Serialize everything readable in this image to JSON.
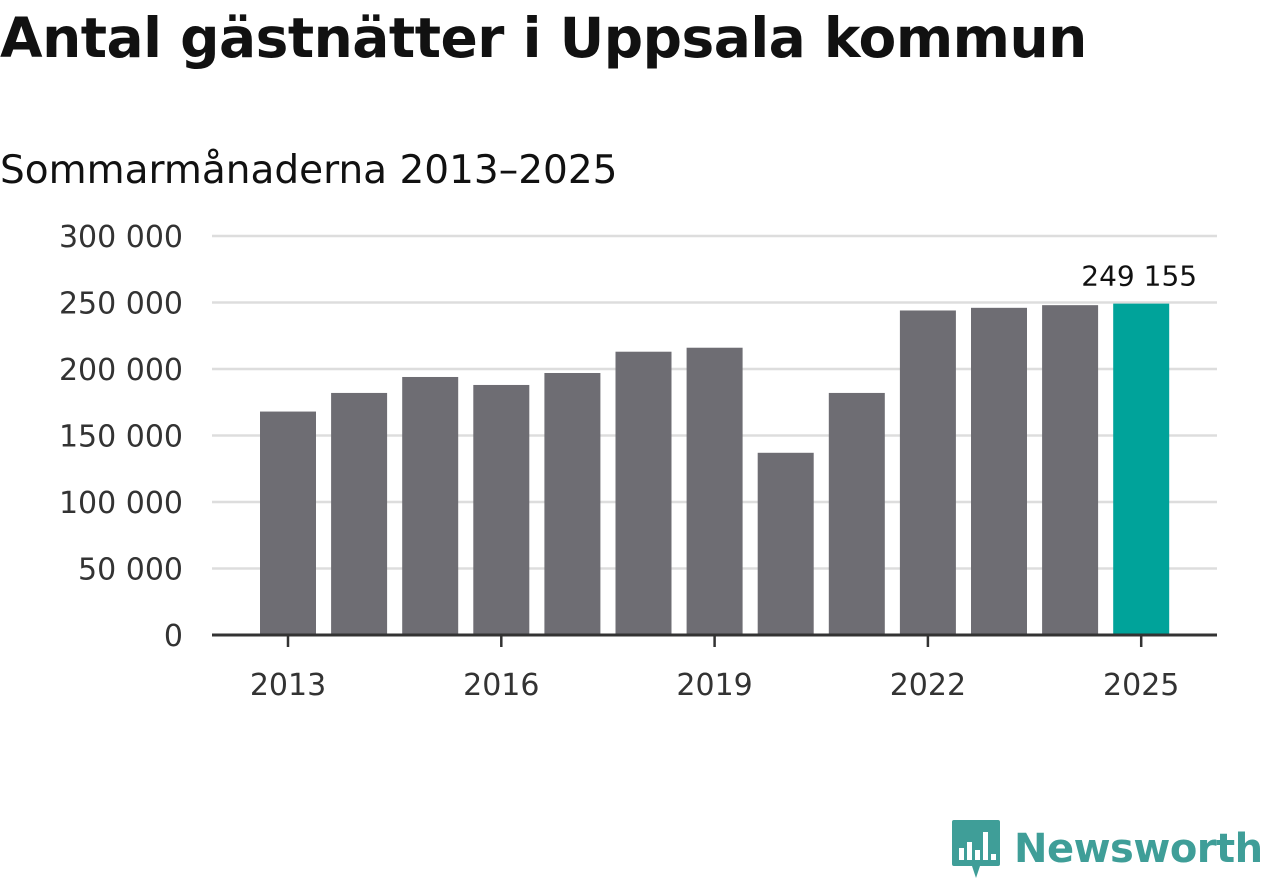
{
  "header": {
    "title": "Antal gästnätter i Uppsala kommun",
    "subtitle": "Sommarmånaderna 2013–2025"
  },
  "brand": {
    "name": "Newsworthy",
    "color": "#3f9e98"
  },
  "chart_data": {
    "type": "bar",
    "title": "Antal gästnätter i Uppsala kommun",
    "subtitle": "Sommarmånaderna 2013–2025",
    "xlabel": "",
    "ylabel": "",
    "categories": [
      2013,
      2014,
      2015,
      2016,
      2017,
      2018,
      2019,
      2020,
      2021,
      2022,
      2023,
      2024,
      2025
    ],
    "values": [
      168000,
      182000,
      194000,
      188000,
      197000,
      213000,
      216000,
      137000,
      182000,
      244000,
      246000,
      248000,
      249155
    ],
    "xtick_labels": [
      "2013",
      "2016",
      "2019",
      "2022",
      "2025"
    ],
    "xtick_years": [
      2013,
      2016,
      2019,
      2022,
      2025
    ],
    "ylim": [
      0,
      300000
    ],
    "yticks": [
      0,
      50000,
      100000,
      150000,
      200000,
      250000,
      300000
    ],
    "ytick_labels": [
      "0",
      "50 000",
      "100 000",
      "150 000",
      "200 000",
      "250 000",
      "300 000"
    ],
    "highlight_index": 12,
    "data_label": "249 155",
    "grid": true,
    "colors": {
      "bar": "#6e6d73",
      "highlight": "#00a39a",
      "grid": "#dddddd",
      "axis": "#333333"
    }
  }
}
